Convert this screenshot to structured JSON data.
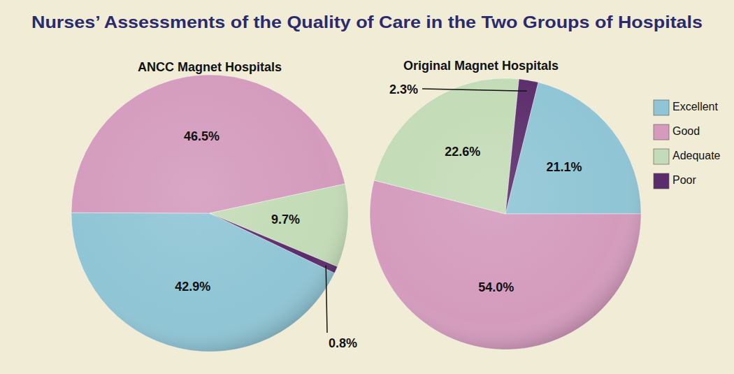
{
  "title": "Nurses’ Assessments of the Quality of Care in the Two Groups of Hospitals",
  "chart_data": [
    {
      "type": "pie",
      "title": "ANCC Magnet Hospitals",
      "categories": [
        "Excellent",
        "Good",
        "Adequate",
        "Poor"
      ],
      "values": [
        42.9,
        46.5,
        9.7,
        0.8
      ],
      "value_labels": [
        "42.9%",
        "46.5%",
        "9.7%",
        "0.8%"
      ],
      "colors": [
        "#8fc5d5",
        "#d49bbd",
        "#c3dbb6",
        "#5b2c6b"
      ],
      "data_labels": true
    },
    {
      "type": "pie",
      "title": "Original Magnet Hospitals",
      "categories": [
        "Excellent",
        "Good",
        "Adequate",
        "Poor"
      ],
      "values": [
        21.1,
        54.0,
        22.6,
        2.3
      ],
      "value_labels": [
        "21.1%",
        "54.0%",
        "22.6%",
        "2.3%"
      ],
      "colors": [
        "#8fc5d5",
        "#d49bbd",
        "#c3dbb6",
        "#5b2c6b"
      ],
      "data_labels": true,
      "legend": "right"
    }
  ]
}
